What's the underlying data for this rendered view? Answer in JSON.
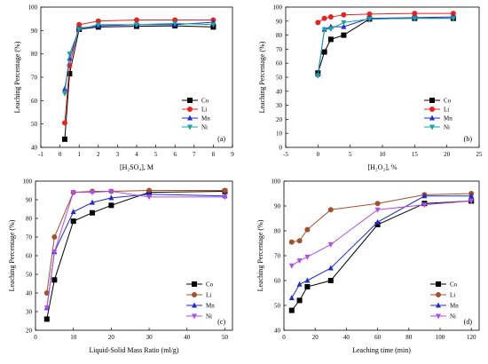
{
  "chart_data": [
    {
      "type": "line",
      "panel_label": "(a)",
      "xlabel": "[H₂SO₄], M",
      "ylabel": "Leaching Percentage (%)",
      "xlim": [
        -1,
        9
      ],
      "ylim": [
        40,
        100
      ],
      "xticks": [
        "-1",
        "0",
        "1",
        "2",
        "3",
        "4",
        "5",
        "6",
        "7",
        "8",
        "9"
      ],
      "yticks": [
        "40",
        "50",
        "60",
        "70",
        "80",
        "90",
        "100"
      ],
      "legend_position": "right-lower",
      "series": [
        {
          "name": "Co",
          "color": "#000000",
          "marker": "square",
          "x": [
            0.25,
            0.5,
            1,
            2,
            4,
            6,
            8
          ],
          "y": [
            43.5,
            71.5,
            90.5,
            91.5,
            91.8,
            92.0,
            91.5
          ]
        },
        {
          "name": "Li",
          "color": "#e8231f",
          "marker": "circle",
          "x": [
            0.25,
            0.5,
            1,
            2,
            4,
            6,
            8
          ],
          "y": [
            50.5,
            75,
            92.5,
            94,
            94.5,
            94.5,
            94.5
          ]
        },
        {
          "name": "Mn",
          "color": "#1f2bd1",
          "marker": "triangle",
          "x": [
            0.25,
            0.5,
            1,
            2,
            4,
            6,
            8
          ],
          "y": [
            65,
            78,
            91,
            92,
            92.5,
            92.5,
            93.5
          ]
        },
        {
          "name": "Ni",
          "color": "#1aa3a3",
          "marker": "triangle-down",
          "x": [
            0.25,
            0.5,
            1,
            2,
            4,
            6,
            8
          ],
          "y": [
            63,
            80,
            90.5,
            92.5,
            92.5,
            93,
            92.5
          ]
        }
      ]
    },
    {
      "type": "line",
      "panel_label": "(b)",
      "xlabel": "[H₂O₂], %",
      "ylabel": "Leaching Percentage (%)",
      "xlim": [
        -5,
        25
      ],
      "ylim": [
        0,
        100
      ],
      "xticks": [
        "-5",
        "0",
        "5",
        "10",
        "15",
        "20",
        "25"
      ],
      "yticks": [
        "0",
        "10",
        "20",
        "30",
        "40",
        "50",
        "60",
        "70",
        "80",
        "90",
        "100"
      ],
      "legend_position": "right-lower",
      "series": [
        {
          "name": "Co",
          "color": "#000000",
          "marker": "square",
          "x": [
            0,
            1,
            2,
            4,
            8,
            15,
            21
          ],
          "y": [
            53,
            68,
            77,
            80,
            91.5,
            92,
            92
          ]
        },
        {
          "name": "Li",
          "color": "#e8231f",
          "marker": "circle",
          "x": [
            0,
            1,
            2,
            4,
            8,
            15,
            21
          ],
          "y": [
            89,
            92,
            93,
            94.5,
            95,
            95.5,
            95.5
          ]
        },
        {
          "name": "Mn",
          "color": "#1f2bd1",
          "marker": "triangle",
          "x": [
            0,
            1,
            2,
            4,
            8,
            15,
            21
          ],
          "y": [
            52,
            84,
            86,
            86,
            92,
            92.5,
            93
          ]
        },
        {
          "name": "Ni",
          "color": "#1aa3a3",
          "marker": "triangle-down",
          "x": [
            0,
            1,
            2,
            4,
            8,
            15,
            21
          ],
          "y": [
            51,
            84,
            84.5,
            89,
            91.5,
            92,
            92
          ]
        }
      ]
    },
    {
      "type": "line",
      "panel_label": "(c)",
      "xlabel": "Liquid-Solid Mass Ratio (ml/g)",
      "ylabel": "Leaching Percentage (%)",
      "xlim": [
        0,
        52
      ],
      "ylim": [
        20,
        100
      ],
      "xticks": [
        "0",
        "10",
        "20",
        "30",
        "40",
        "50"
      ],
      "yticks": [
        "20",
        "30",
        "40",
        "50",
        "60",
        "70",
        "80",
        "90",
        "100"
      ],
      "legend_position": "right-lower",
      "series": [
        {
          "name": "Co",
          "color": "#000000",
          "marker": "square",
          "x": [
            3,
            5,
            10,
            15,
            20,
            30,
            50
          ],
          "y": [
            26,
            47,
            78.5,
            83,
            87,
            94,
            94.5
          ]
        },
        {
          "name": "Li",
          "color": "#a0522d",
          "marker": "circle",
          "x": [
            3,
            5,
            10,
            15,
            20,
            30,
            50
          ],
          "y": [
            40,
            70,
            94,
            94.5,
            94.5,
            95,
            95
          ]
        },
        {
          "name": "Mn",
          "color": "#1f2bd1",
          "marker": "triangle",
          "x": [
            3,
            5,
            10,
            15,
            20,
            30,
            50
          ],
          "y": [
            32,
            62,
            83.5,
            88.5,
            91,
            93,
            92
          ]
        },
        {
          "name": "Ni",
          "color": "#b04ee8",
          "marker": "triangle-down",
          "x": [
            3,
            5,
            10,
            15,
            20,
            30,
            50
          ],
          "y": [
            32,
            62,
            94,
            94,
            94.5,
            91.5,
            91.5
          ]
        }
      ]
    },
    {
      "type": "line",
      "panel_label": "(d)",
      "xlabel": "Leaching time (min)",
      "ylabel": "Leaching Percentage (%)",
      "xlim": [
        0,
        125
      ],
      "ylim": [
        40,
        100
      ],
      "xticks": [
        "0",
        "20",
        "40",
        "60",
        "80",
        "100",
        "120"
      ],
      "yticks": [
        "40",
        "50",
        "60",
        "70",
        "80",
        "90",
        "100"
      ],
      "legend_position": "right-lower",
      "series": [
        {
          "name": "Co",
          "color": "#000000",
          "marker": "square",
          "x": [
            5,
            10,
            15,
            30,
            60,
            90,
            120
          ],
          "y": [
            48,
            52,
            57.5,
            60,
            82.5,
            91,
            92
          ]
        },
        {
          "name": "Li",
          "color": "#a0522d",
          "marker": "circle",
          "x": [
            5,
            10,
            15,
            30,
            60,
            90,
            120
          ],
          "y": [
            75.5,
            76,
            80.5,
            88.5,
            91,
            94.5,
            95
          ]
        },
        {
          "name": "Mn",
          "color": "#1f2bd1",
          "marker": "triangle",
          "x": [
            5,
            10,
            15,
            30,
            60,
            90,
            120
          ],
          "y": [
            53,
            58.5,
            60,
            65,
            83.5,
            94,
            94
          ]
        },
        {
          "name": "Ni",
          "color": "#b04ee8",
          "marker": "triangle-down",
          "x": [
            5,
            10,
            15,
            30,
            60,
            90,
            120
          ],
          "y": [
            66,
            68,
            69.5,
            74.5,
            88.5,
            90.5,
            92
          ]
        }
      ]
    }
  ]
}
